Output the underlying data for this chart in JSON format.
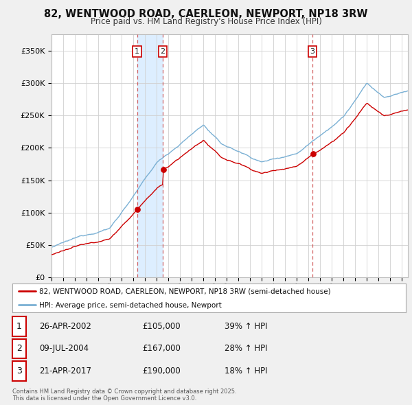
{
  "title": "82, WENTWOOD ROAD, CAERLEON, NEWPORT, NP18 3RW",
  "subtitle": "Price paid vs. HM Land Registry's House Price Index (HPI)",
  "ylabel_ticks": [
    "£0",
    "£50K",
    "£100K",
    "£150K",
    "£200K",
    "£250K",
    "£300K",
    "£350K"
  ],
  "ytick_values": [
    0,
    50000,
    100000,
    150000,
    200000,
    250000,
    300000,
    350000
  ],
  "ylim": [
    0,
    375000
  ],
  "xlim_start": 1995.0,
  "xlim_end": 2025.5,
  "purchases": [
    {
      "num": 1,
      "date": "26-APR-2002",
      "price": 105000,
      "hpi_change": "39% ↑ HPI",
      "x": 2002.32
    },
    {
      "num": 2,
      "date": "09-JUL-2004",
      "price": 167000,
      "hpi_change": "28% ↑ HPI",
      "x": 2004.52
    },
    {
      "num": 3,
      "date": "21-APR-2017",
      "price": 190000,
      "hpi_change": "18% ↑ HPI",
      "x": 2017.32
    }
  ],
  "legend_line1": "82, WENTWOOD ROAD, CAERLEON, NEWPORT, NP18 3RW (semi-detached house)",
  "legend_line2": "HPI: Average price, semi-detached house, Newport",
  "footer": "Contains HM Land Registry data © Crown copyright and database right 2025.\nThis data is licensed under the Open Government Licence v3.0.",
  "line_color_red": "#cc0000",
  "line_color_blue": "#7ab0d4",
  "background_color": "#f0f0f0",
  "plot_bg": "#ffffff",
  "shade_color": "#ddeeff"
}
